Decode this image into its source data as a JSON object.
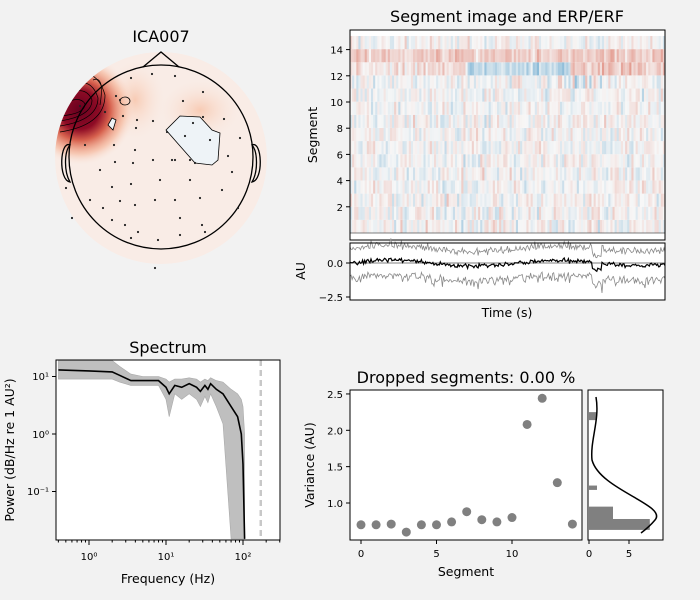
{
  "chart_data": [
    {
      "type": "topomap",
      "title": "ICA007",
      "colormap": "RdBu_r",
      "note_colors": {
        "positive": "#67001f",
        "negative": "#deebf7"
      }
    },
    {
      "type": "heatmap",
      "title": "Segment image and ERP/ERF",
      "ylabel": "Segment",
      "yticks": [
        "2",
        "4",
        "6",
        "8",
        "10",
        "12",
        "14"
      ],
      "ylim": [
        0,
        15
      ],
      "colormap": "RdBu_r"
    },
    {
      "type": "line",
      "ylabel": "AU",
      "xlabel": "Time (s)",
      "yticks": [
        "0.0",
        "−2.5"
      ],
      "ylim": [
        -2.8,
        1.6
      ],
      "colors": {
        "mean": "#000000",
        "band": "#808080"
      }
    },
    {
      "type": "line",
      "title": "Spectrum",
      "xlabel": "Frequency (Hz)",
      "ylabel": "Power (dB/Hz re 1 AU²)",
      "xscale": "log",
      "yscale": "log",
      "xlim": [
        0.37,
        300
      ],
      "ylim": [
        0.0145,
        19
      ],
      "xticks": [
        "10⁰",
        "10¹",
        "10²"
      ],
      "yticks": [
        "10¹",
        "10⁰",
        "10⁻¹"
      ],
      "x": [
        0.4,
        1,
        2,
        2.5,
        3.5,
        5,
        8,
        10,
        11,
        13,
        16,
        20,
        25,
        28,
        32,
        35,
        38,
        45,
        55,
        70,
        85,
        95,
        100,
        105
      ],
      "y": [
        13,
        12.5,
        12,
        10.5,
        8.5,
        8.5,
        8.5,
        6.5,
        5,
        7,
        6.5,
        7.5,
        6.5,
        5.5,
        7,
        6,
        7.5,
        6,
        5,
        3,
        2,
        1,
        0.3,
        0.015
      ],
      "lower": [
        9,
        9,
        9,
        8,
        7,
        7,
        7,
        4,
        2,
        5,
        4,
        5,
        4,
        3,
        4.5,
        3.5,
        5,
        3,
        1.5,
        0.015,
        0.015,
        0.015,
        0.015,
        0.015
      ],
      "upper": [
        19,
        19,
        19,
        15,
        11,
        10,
        10,
        9,
        8,
        9,
        9,
        9.5,
        9,
        8,
        9,
        8.5,
        9.5,
        8.5,
        8,
        6,
        5,
        4,
        3,
        1
      ],
      "vline": 170,
      "colors": {
        "mean": "#000000",
        "band": "#bfbfbf",
        "vline": "#c8c8c8"
      }
    },
    {
      "type": "scatter",
      "title": "Dropped segments: 0.00 %",
      "xlabel": "Segment",
      "ylabel": "Variance (AU)",
      "xlim": [
        -0.7,
        14.7
      ],
      "ylim": [
        0.55,
        2.55
      ],
      "xticks": [
        "0",
        "5",
        "10"
      ],
      "yticks": [
        "1.0",
        "1.5",
        "2.0",
        "2.5"
      ],
      "x": [
        0,
        1,
        2,
        3,
        4,
        5,
        6,
        7,
        8,
        9,
        10,
        11,
        12,
        13,
        14
      ],
      "y": [
        0.7,
        0.7,
        0.71,
        0.6,
        0.7,
        0.7,
        0.74,
        0.88,
        0.77,
        0.74,
        0.8,
        2.08,
        2.44,
        1.28,
        0.71
      ],
      "color": "#808080"
    },
    {
      "type": "bar",
      "orientation": "horizontal",
      "xticks": [
        "0",
        "5"
      ],
      "xlim": [
        0,
        9.3
      ],
      "bins": [
        [
          0.63,
          0.78
        ],
        [
          0.78,
          0.95
        ],
        [
          1.18,
          1.24
        ],
        [
          2.14,
          2.25
        ]
      ],
      "values": [
        7.6,
        3,
        1,
        1
      ],
      "color": "#808080"
    }
  ]
}
